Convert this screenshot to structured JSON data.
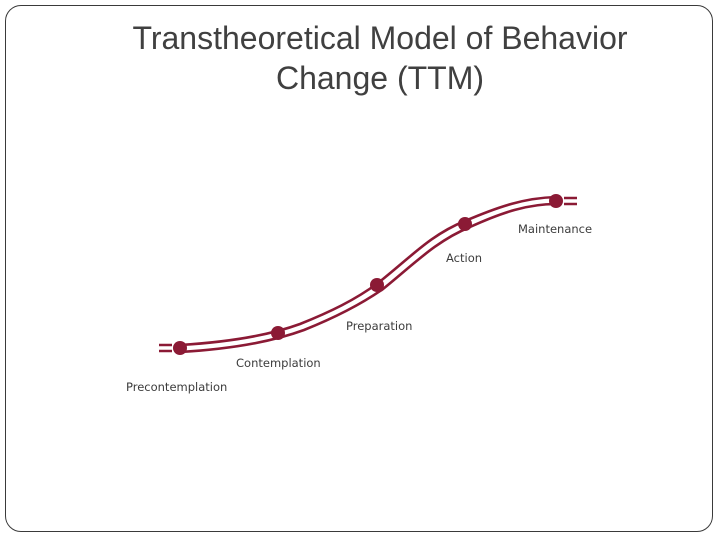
{
  "slide": {
    "title_line1": "Transtheoretical Model of Behavior",
    "title_line2": "Change (TTM)"
  },
  "diagram": {
    "accent_color": "#8b1a35",
    "stages": [
      {
        "label": "Precontemplation"
      },
      {
        "label": "Contemplation"
      },
      {
        "label": "Preparation"
      },
      {
        "label": "Action"
      },
      {
        "label": "Maintenance"
      }
    ]
  }
}
